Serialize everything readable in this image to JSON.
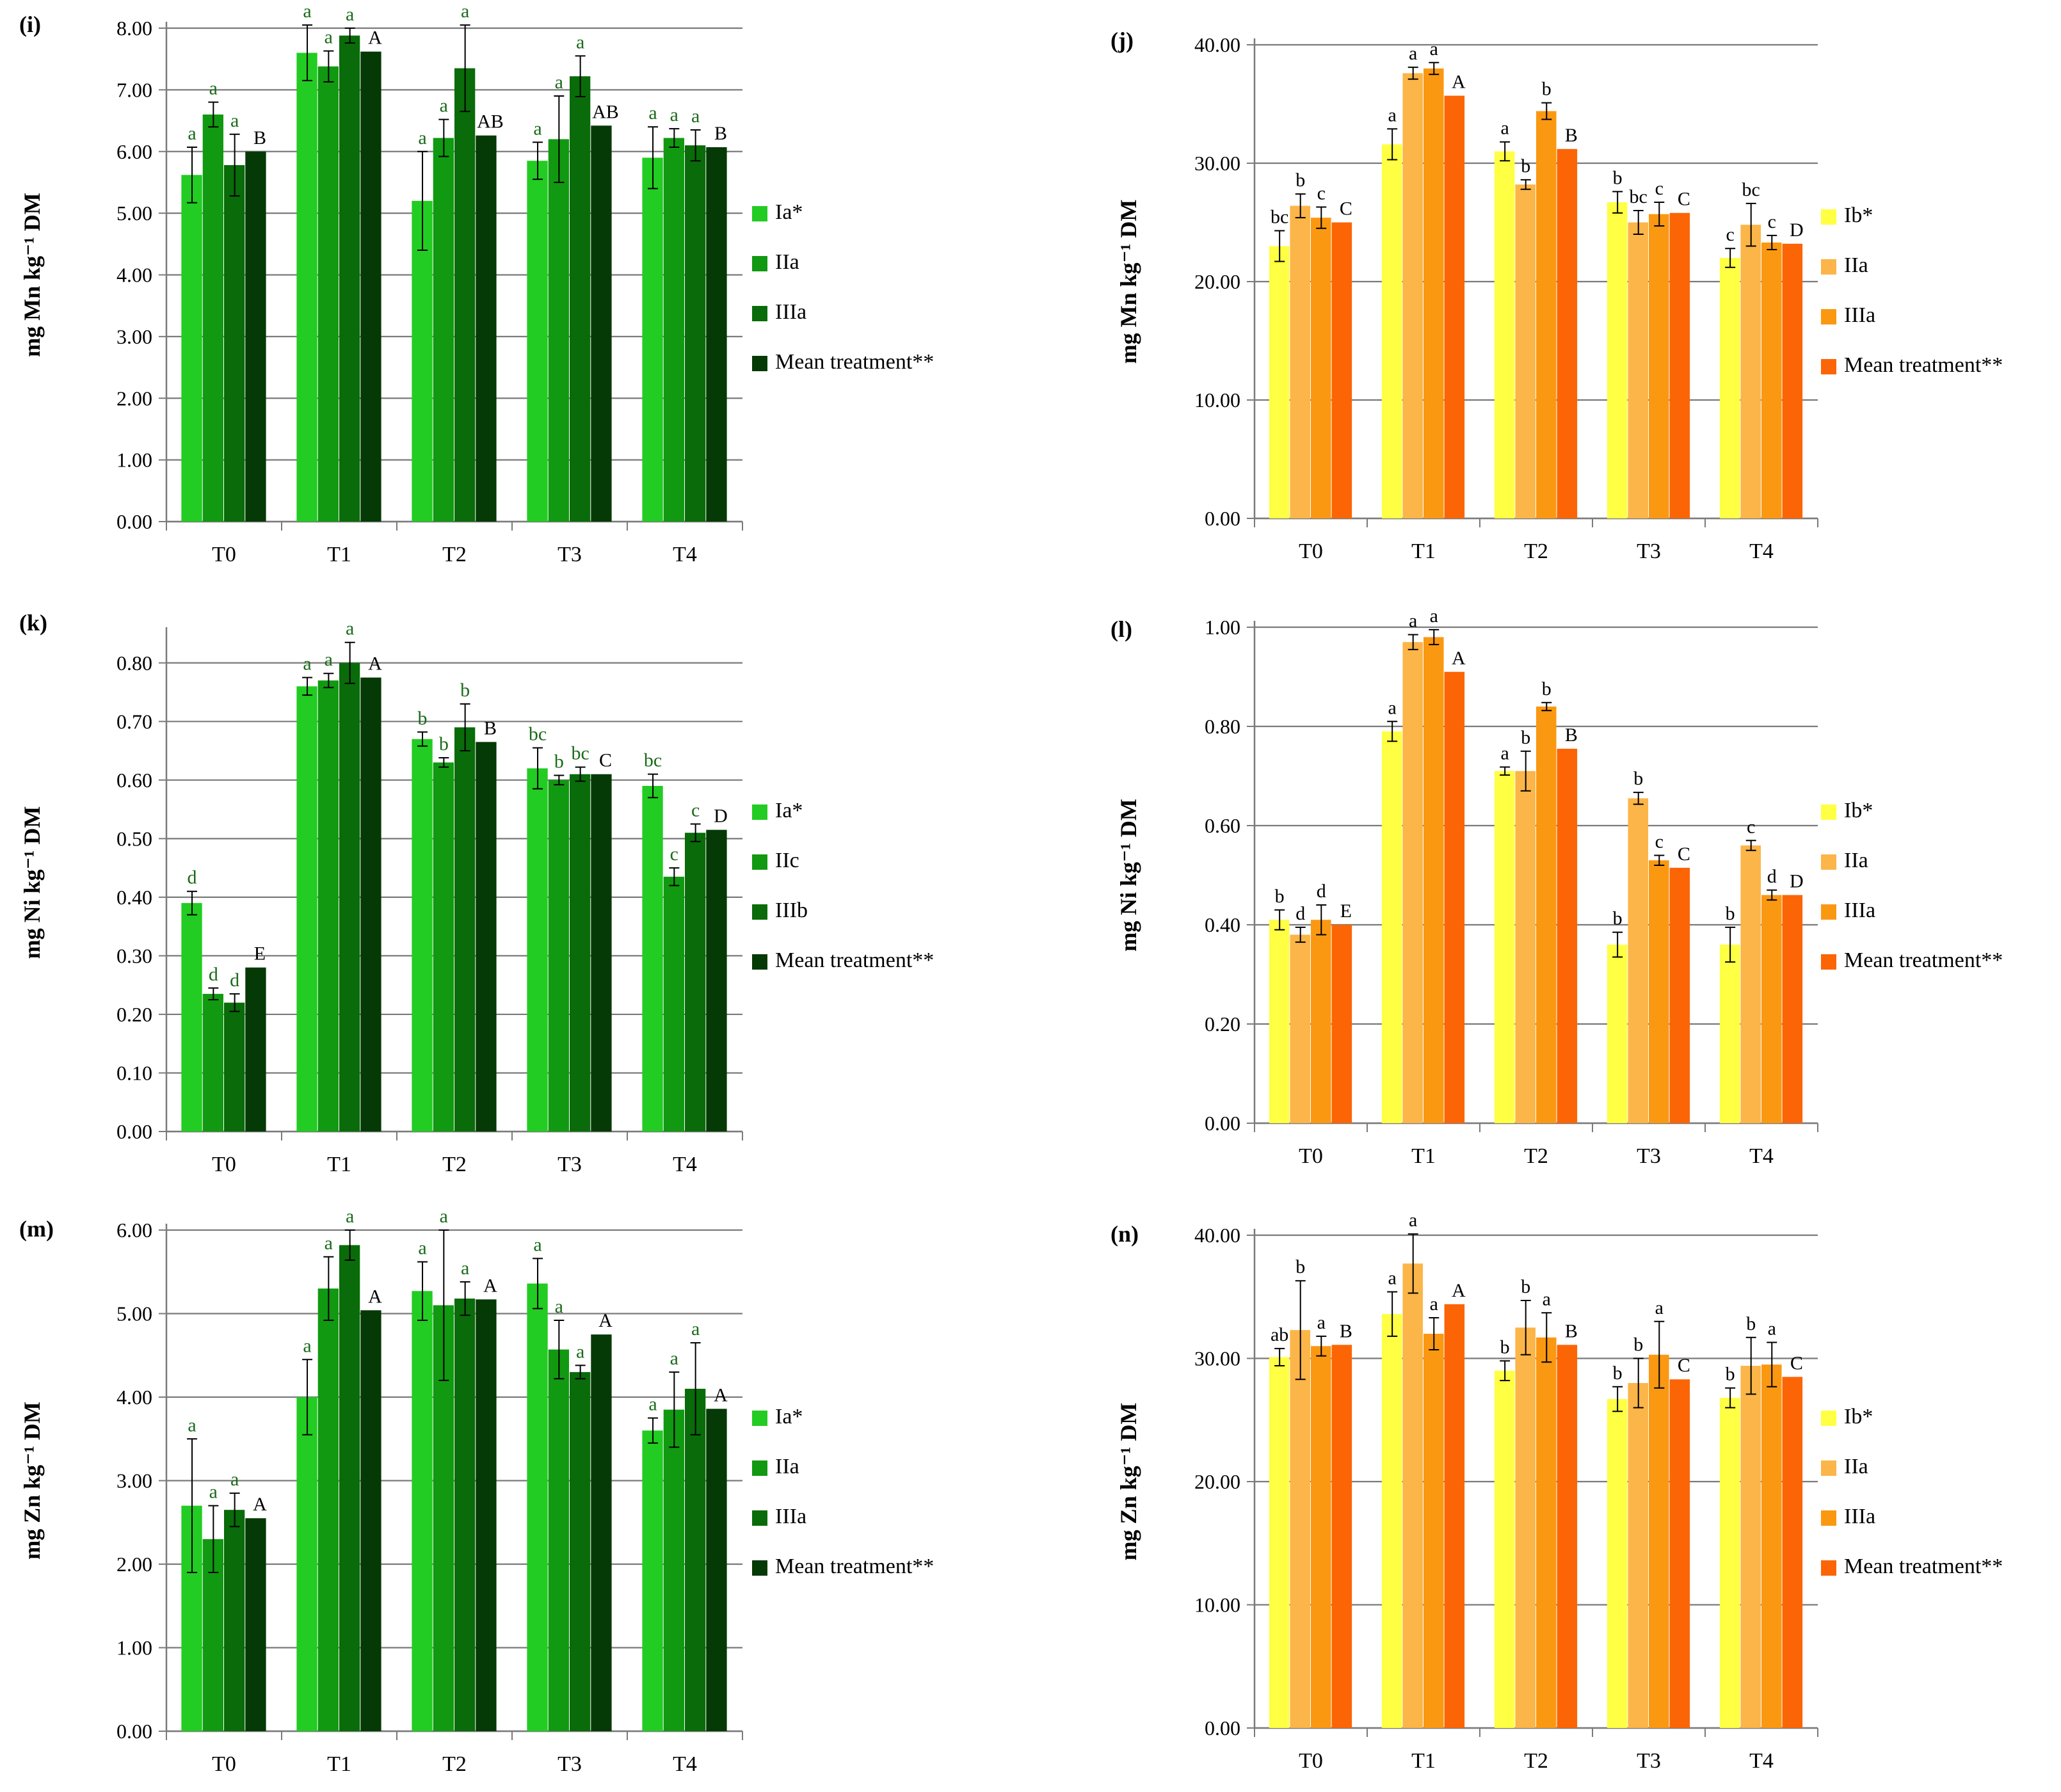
{
  "figure": {
    "green_colors": [
      "#22cc22",
      "#119911",
      "#096b09",
      "#053905"
    ],
    "orange_colors": [
      "#ffff44",
      "#fbb548",
      "#fb9812",
      "#fb6506"
    ],
    "sig_green": "#1a6b1a",
    "sig_orange": "#000000"
  },
  "chart_data": [
    {
      "id": "i",
      "letter": "(i)",
      "type": "bar",
      "palette": "green",
      "ylabel": "mg Mn kg⁻¹ DM",
      "ylim": [
        0,
        8
      ],
      "ystep": 1,
      "ydec": 2,
      "categories": [
        "T0",
        "T1",
        "T2",
        "T3",
        "T4"
      ],
      "legend": [
        "Ia*",
        "IIa",
        "IIIa",
        "Mean treatment**"
      ],
      "series": [
        {
          "name": "Ia*",
          "values": [
            5.62,
            7.6,
            5.2,
            5.85,
            5.9
          ],
          "errors": [
            0.45,
            0.45,
            0.8,
            0.3,
            0.5
          ],
          "labels": [
            "a",
            "a",
            "a",
            "a",
            "a"
          ]
        },
        {
          "name": "IIa",
          "values": [
            6.6,
            7.38,
            6.22,
            6.2,
            6.22
          ],
          "errors": [
            0.2,
            0.25,
            0.3,
            0.7,
            0.15
          ],
          "labels": [
            "a",
            "a",
            "a",
            "a",
            "a"
          ]
        },
        {
          "name": "IIIa",
          "values": [
            5.78,
            7.88,
            7.35,
            7.22,
            6.1
          ],
          "errors": [
            0.5,
            0.12,
            0.7,
            0.33,
            0.25
          ],
          "labels": [
            "a",
            "a",
            "a",
            "a",
            "a"
          ]
        },
        {
          "name": "Mean treatment**",
          "values": [
            6.0,
            7.62,
            6.26,
            6.42,
            6.07
          ],
          "errors": [
            0,
            0,
            0,
            0,
            0
          ],
          "labels": [
            "B",
            "A",
            "AB",
            "AB",
            "B"
          ]
        }
      ]
    },
    {
      "id": "j",
      "letter": "(j)",
      "type": "bar",
      "palette": "orange",
      "ylabel": "mg Mn kg⁻¹ DM",
      "ylim": [
        0,
        40
      ],
      "ystep": 10,
      "ydec": 2,
      "categories": [
        "T0",
        "T1",
        "T2",
        "T3",
        "T4"
      ],
      "legend": [
        "Ib*",
        "IIa",
        "IIIa",
        "Mean treatment**"
      ],
      "series": [
        {
          "name": "Ib*",
          "values": [
            23.0,
            31.6,
            31.0,
            26.7,
            22.0
          ],
          "errors": [
            1.3,
            1.3,
            0.8,
            0.9,
            0.8
          ],
          "labels": [
            "bc",
            "a",
            "a",
            "b",
            "c"
          ]
        },
        {
          "name": "IIa",
          "values": [
            26.4,
            37.6,
            28.2,
            25.0,
            24.8
          ],
          "errors": [
            1.0,
            0.5,
            0.4,
            1.0,
            1.8
          ],
          "labels": [
            "b",
            "a",
            "b",
            "bc",
            "bc"
          ]
        },
        {
          "name": "IIIa",
          "values": [
            25.4,
            38.0,
            34.4,
            25.7,
            23.3
          ],
          "errors": [
            0.9,
            0.5,
            0.7,
            1.0,
            0.6
          ],
          "labels": [
            "c",
            "a",
            "b",
            "c",
            "c"
          ]
        },
        {
          "name": "Mean treatment**",
          "values": [
            25.0,
            35.7,
            31.2,
            25.8,
            23.2
          ],
          "errors": [
            0,
            0,
            0,
            0,
            0
          ],
          "labels": [
            "C",
            "A",
            "B",
            "C",
            "D"
          ]
        }
      ]
    },
    {
      "id": "k",
      "letter": "(k)",
      "type": "bar",
      "palette": "green",
      "ylabel": "mg Ni kg⁻¹ DM",
      "ylim": [
        0,
        0.85
      ],
      "ystep": 0.1,
      "ydec": 2,
      "categories": [
        "T0",
        "T1",
        "T2",
        "T3",
        "T4"
      ],
      "legend": [
        "Ia*",
        "IIc",
        "IIIb",
        "Mean treatment**"
      ],
      "series": [
        {
          "name": "Ia*",
          "values": [
            0.39,
            0.76,
            0.67,
            0.62,
            0.59
          ],
          "errors": [
            0.02,
            0.015,
            0.012,
            0.035,
            0.02
          ],
          "labels": [
            "d",
            "a",
            "b",
            "bc",
            "bc"
          ]
        },
        {
          "name": "IIc",
          "values": [
            0.235,
            0.77,
            0.63,
            0.6,
            0.435
          ],
          "errors": [
            0.01,
            0.012,
            0.008,
            0.008,
            0.015
          ],
          "labels": [
            "d",
            "a",
            "b",
            "b",
            "c"
          ]
        },
        {
          "name": "IIIb",
          "values": [
            0.22,
            0.8,
            0.69,
            0.61,
            0.51
          ],
          "errors": [
            0.015,
            0.035,
            0.04,
            0.012,
            0.015
          ],
          "labels": [
            "d",
            "a",
            "b",
            "bc",
            "c"
          ]
        },
        {
          "name": "Mean treatment**",
          "values": [
            0.28,
            0.775,
            0.665,
            0.61,
            0.515
          ],
          "errors": [
            0,
            0,
            0,
            0,
            0
          ],
          "labels": [
            "E",
            "A",
            "B",
            "C",
            "D"
          ]
        }
      ]
    },
    {
      "id": "l",
      "letter": "(l)",
      "type": "bar",
      "palette": "orange",
      "ylabel": "mg Ni kg⁻¹ DM",
      "ylim": [
        0,
        1.0
      ],
      "ystep": 0.2,
      "ydec": 2,
      "categories": [
        "T0",
        "T1",
        "T2",
        "T3",
        "T4"
      ],
      "legend": [
        "Ib*",
        "IIa",
        "IIIa",
        "Mean treatment**"
      ],
      "series": [
        {
          "name": "Ib*",
          "values": [
            0.41,
            0.79,
            0.71,
            0.36,
            0.36
          ],
          "errors": [
            0.02,
            0.02,
            0.008,
            0.025,
            0.035
          ],
          "labels": [
            "b",
            "a",
            "a",
            "b",
            "b"
          ]
        },
        {
          "name": "IIa",
          "values": [
            0.38,
            0.97,
            0.71,
            0.655,
            0.56
          ],
          "errors": [
            0.015,
            0.015,
            0.04,
            0.012,
            0.01
          ],
          "labels": [
            "d",
            "a",
            "b",
            "b",
            "c"
          ]
        },
        {
          "name": "IIIa",
          "values": [
            0.41,
            0.98,
            0.84,
            0.53,
            0.46
          ],
          "errors": [
            0.03,
            0.015,
            0.008,
            0.01,
            0.01
          ],
          "labels": [
            "d",
            "a",
            "b",
            "c",
            "d"
          ]
        },
        {
          "name": "Mean treatment**",
          "values": [
            0.4,
            0.91,
            0.755,
            0.515,
            0.46
          ],
          "errors": [
            0,
            0,
            0,
            0,
            0
          ],
          "labels": [
            "E",
            "A",
            "B",
            "C",
            "D"
          ]
        }
      ]
    },
    {
      "id": "m",
      "letter": "(m)",
      "type": "bar",
      "palette": "green",
      "ylabel": "mg Zn kg⁻¹ DM",
      "ylim": [
        0,
        6
      ],
      "ystep": 1,
      "ydec": 2,
      "categories": [
        "T0",
        "T1",
        "T2",
        "T3",
        "T4"
      ],
      "legend": [
        "Ia*",
        "IIa",
        "IIIa",
        "Mean treatment**"
      ],
      "series": [
        {
          "name": "Ia*",
          "values": [
            2.7,
            4.0,
            5.27,
            5.36,
            3.6
          ],
          "errors": [
            0.8,
            0.45,
            0.35,
            0.3,
            0.15
          ],
          "labels": [
            "a",
            "a",
            "a",
            "a",
            "a"
          ]
        },
        {
          "name": "IIa",
          "values": [
            2.3,
            5.3,
            5.1,
            4.57,
            3.85
          ],
          "errors": [
            0.4,
            0.38,
            0.9,
            0.35,
            0.45
          ],
          "labels": [
            "a",
            "a",
            "a",
            "a",
            "a"
          ]
        },
        {
          "name": "IIIa",
          "values": [
            2.65,
            5.82,
            5.18,
            4.3,
            4.1
          ],
          "errors": [
            0.2,
            0.18,
            0.2,
            0.08,
            0.55
          ],
          "labels": [
            "a",
            "a",
            "a",
            "a",
            "a"
          ]
        },
        {
          "name": "Mean treatment**",
          "values": [
            2.55,
            5.04,
            5.17,
            4.75,
            3.86
          ],
          "errors": [
            0,
            0,
            0,
            0,
            0
          ],
          "labels": [
            "A",
            "A",
            "A",
            "A",
            "A"
          ]
        }
      ]
    },
    {
      "id": "n",
      "letter": "(n)",
      "type": "bar",
      "palette": "orange",
      "ylabel": "mg Zn kg⁻¹ DM",
      "ylim": [
        0,
        40
      ],
      "ystep": 10,
      "ydec": 2,
      "categories": [
        "T0",
        "T1",
        "T2",
        "T3",
        "T4"
      ],
      "legend": [
        "Ib*",
        "IIa",
        "IIIa",
        "Mean treatment**"
      ],
      "series": [
        {
          "name": "Ib*",
          "values": [
            30.1,
            33.6,
            29.0,
            26.7,
            26.8
          ],
          "errors": [
            0.7,
            1.8,
            0.8,
            1.0,
            0.8
          ],
          "labels": [
            "ab",
            "a",
            "b",
            "b",
            "b"
          ]
        },
        {
          "name": "IIa",
          "values": [
            32.3,
            37.7,
            32.5,
            28.0,
            29.4
          ],
          "errors": [
            4.0,
            2.4,
            2.2,
            2.0,
            2.3
          ],
          "labels": [
            "b",
            "a",
            "b",
            "b",
            "b"
          ]
        },
        {
          "name": "IIIa",
          "values": [
            31.0,
            32.0,
            31.7,
            30.3,
            29.5
          ],
          "errors": [
            0.8,
            1.3,
            2.0,
            2.7,
            1.8
          ],
          "labels": [
            "a",
            "a",
            "a",
            "a",
            "a"
          ]
        },
        {
          "name": "Mean treatment**",
          "values": [
            31.1,
            34.4,
            31.1,
            28.3,
            28.5
          ],
          "errors": [
            0,
            0,
            0,
            0,
            0
          ],
          "labels": [
            "B",
            "A",
            "B",
            "C",
            "C"
          ]
        }
      ]
    }
  ]
}
